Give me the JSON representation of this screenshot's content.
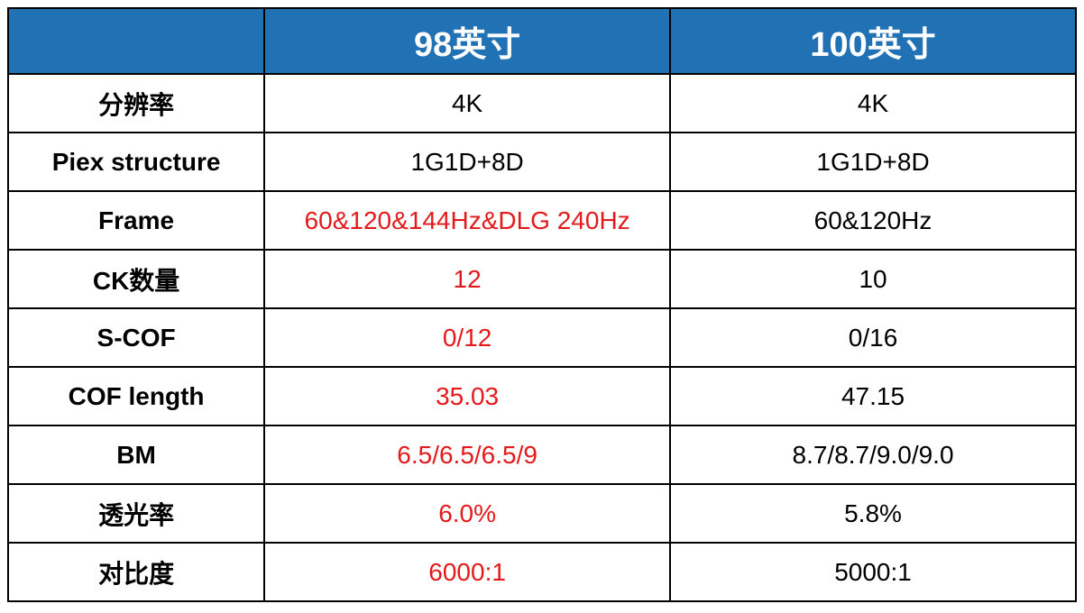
{
  "table": {
    "type": "table",
    "header_bg_color": "#2171b5",
    "header_text_color": "#ffffff",
    "border_color": "#000000",
    "highlight_color": "#e31a1c",
    "normal_text_color": "#000000",
    "background_color": "#ffffff",
    "header_fontsize": 38,
    "cell_fontsize": 28,
    "columns": {
      "blank": "",
      "col1": "98英寸",
      "col2": "100英寸"
    },
    "rows": [
      {
        "label": "分辨率",
        "col1": {
          "value": "4K",
          "highlight": false
        },
        "col2": {
          "value": "4K",
          "highlight": false
        }
      },
      {
        "label": "Piex structure",
        "col1": {
          "value": "1G1D+8D",
          "highlight": false
        },
        "col2": {
          "value": "1G1D+8D",
          "highlight": false
        }
      },
      {
        "label": "Frame",
        "col1": {
          "value": "60&120&144Hz&DLG 240Hz",
          "highlight": true
        },
        "col2": {
          "value": "60&120Hz",
          "highlight": false
        }
      },
      {
        "label": "CK数量",
        "col1": {
          "value": "12",
          "highlight": true
        },
        "col2": {
          "value": "10",
          "highlight": false
        }
      },
      {
        "label": "S-COF",
        "col1": {
          "value": "0/12",
          "highlight": true
        },
        "col2": {
          "value": "0/16",
          "highlight": false
        }
      },
      {
        "label": "COF length",
        "col1": {
          "value": "35.03",
          "highlight": true
        },
        "col2": {
          "value": "47.15",
          "highlight": false
        }
      },
      {
        "label": "BM",
        "col1": {
          "value": "6.5/6.5/6.5/9",
          "highlight": true
        },
        "col2": {
          "value": "8.7/8.7/9.0/9.0",
          "highlight": false
        }
      },
      {
        "label": "透光率",
        "col1": {
          "value": "6.0%",
          "highlight": true
        },
        "col2": {
          "value": "5.8%",
          "highlight": false
        }
      },
      {
        "label": "对比度",
        "col1": {
          "value": "6000:1",
          "highlight": true
        },
        "col2": {
          "value": "5000:1",
          "highlight": false
        }
      }
    ]
  }
}
